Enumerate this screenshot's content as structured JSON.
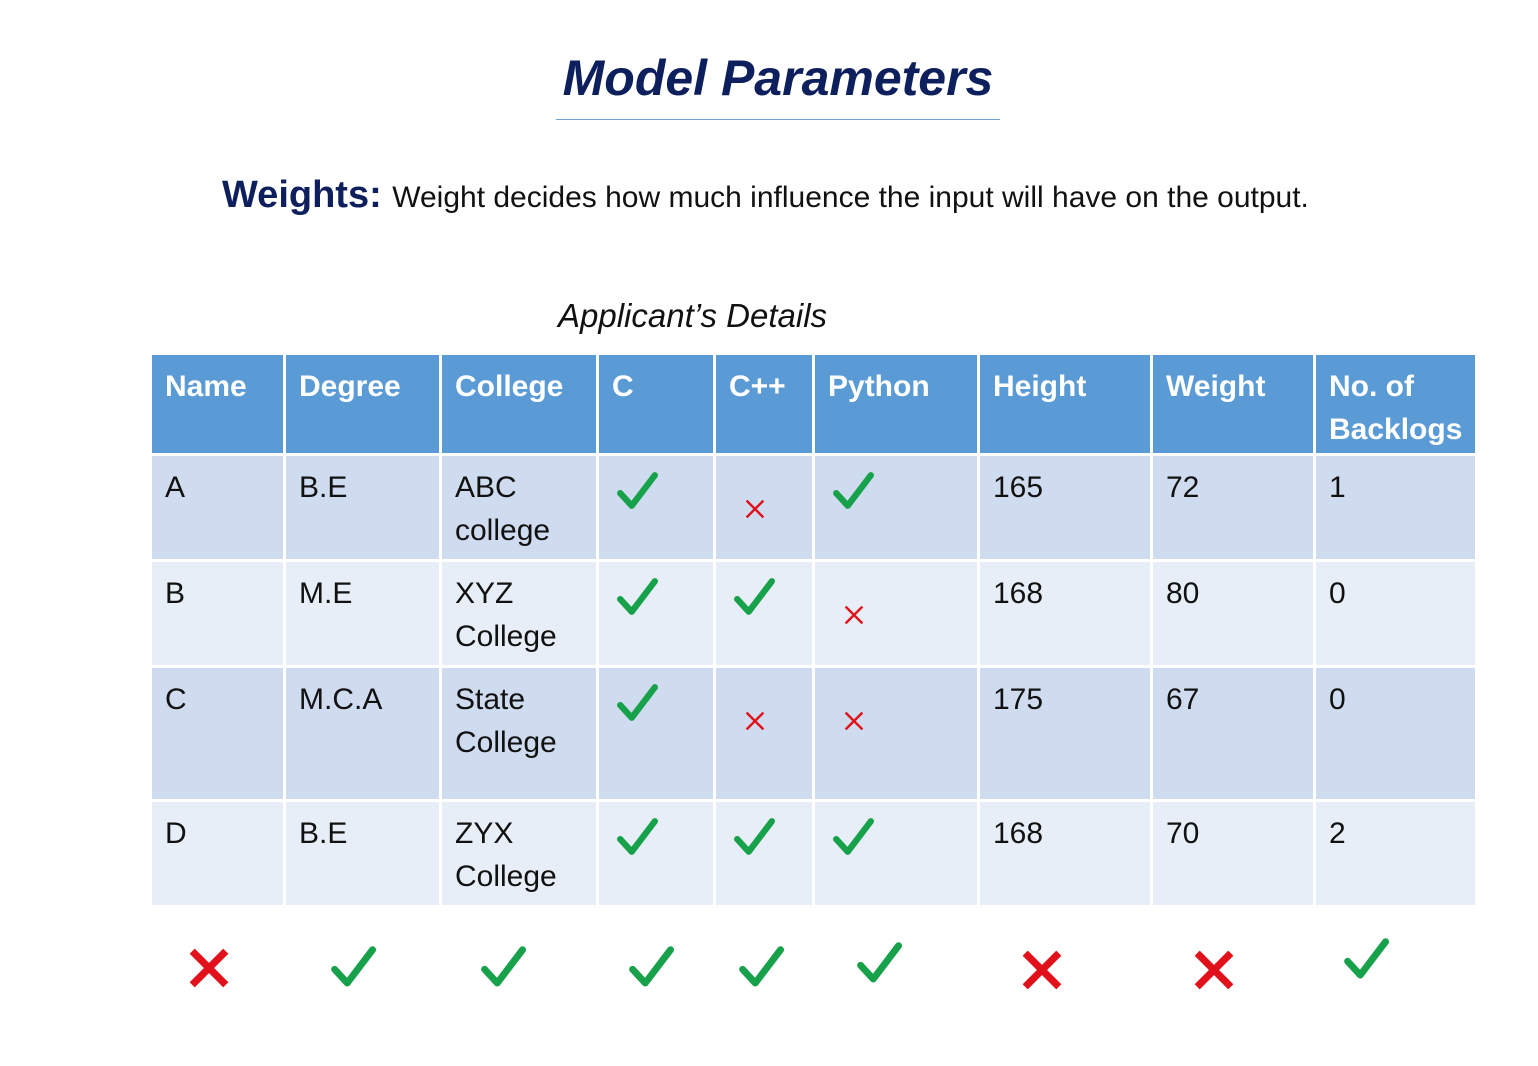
{
  "title": "Model Parameters",
  "weights": {
    "label": "Weights:",
    "description": "Weight decides how much influence the input will have on the output."
  },
  "table_caption": "Applicant’s Details",
  "colors": {
    "title": "#0d1f5c",
    "header_bg": "#5b9bd5",
    "row_dark": "#cfdbee",
    "row_light": "#e8eef7",
    "tick": "#17a14a",
    "cross": "#e0111b"
  },
  "table": {
    "headers": [
      "Name",
      "Degree",
      "College",
      "C",
      "C++",
      "Python",
      "Height",
      "Weight",
      "No. of Backlogs"
    ],
    "rows": [
      [
        "A",
        "B.E",
        "ABC college",
        "tick-icon",
        "cross-icon",
        "tick-icon",
        "165",
        "72",
        "1"
      ],
      [
        "B",
        "M.E",
        "XYZ College",
        "tick-icon",
        "tick-icon",
        "cross-icon",
        "168",
        "80",
        "0"
      ],
      [
        "C",
        "M.C.A",
        "State College",
        "tick-icon",
        "cross-icon",
        "cross-icon",
        "175",
        "67",
        "0"
      ],
      [
        "D",
        "B.E",
        "ZYX College",
        "tick-icon",
        "tick-icon",
        "tick-icon",
        "168",
        "70",
        "2"
      ]
    ]
  },
  "column_relevance": [
    "cross-icon",
    "tick-icon",
    "tick-icon",
    "tick-icon",
    "tick-icon",
    "tick-icon",
    "cross-icon",
    "cross-icon",
    "tick-icon"
  ]
}
